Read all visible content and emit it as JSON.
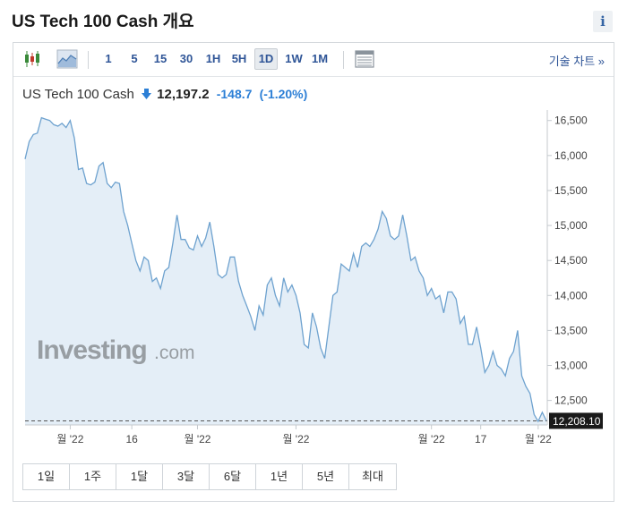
{
  "header": {
    "title": "US Tech 100 Cash 개요",
    "info_label": "i"
  },
  "toolbar": {
    "candlestick_icon": "candlestick-icon",
    "area_icon": "area-chart-icon",
    "table_icon": "table-icon",
    "intervals": [
      "1",
      "5",
      "15",
      "30",
      "1H",
      "5H",
      "1D",
      "1W",
      "1M"
    ],
    "active_interval": "1D",
    "chart_link": "기술 차트 »"
  },
  "quote": {
    "instrument": "US Tech 100 Cash",
    "last": "12,197.2",
    "change": "-148.7",
    "change_pct": "(-1.20%)",
    "direction_icon": "down-arrow-icon"
  },
  "watermark": {
    "brand": "Investing",
    "suffix": ".com"
  },
  "chart_data": {
    "type": "area",
    "title": "",
    "xlabel": "",
    "ylabel": "",
    "ylim": [
      12150,
      16650
    ],
    "yticks": [
      12500,
      13000,
      13500,
      14000,
      14500,
      15000,
      15500,
      16000,
      16500
    ],
    "ytick_labels": [
      "12,500",
      "13,000",
      "13,500",
      "14,000",
      "14,500",
      "15,000",
      "15,500",
      "16,000",
      "16,500"
    ],
    "xticks": [
      {
        "label": "월 '22",
        "index": 11
      },
      {
        "label": "16",
        "index": 26
      },
      {
        "label": "월 '22",
        "index": 42
      },
      {
        "label": "월 '22",
        "index": 66
      },
      {
        "label": "월 '22",
        "index": 99
      },
      {
        "label": "17",
        "index": 111
      },
      {
        "label": "월 '22",
        "index": 125
      }
    ],
    "current_value": 12208.1,
    "current_label": "12,208.10",
    "grid": false,
    "color": "#6ea2cf",
    "fill": "#e4eef7",
    "values": [
      15950,
      16200,
      16300,
      16320,
      16540,
      16520,
      16500,
      16440,
      16420,
      16460,
      16400,
      16500,
      16250,
      15800,
      15820,
      15600,
      15580,
      15620,
      15850,
      15900,
      15600,
      15540,
      15620,
      15600,
      15200,
      15000,
      14750,
      14500,
      14350,
      14550,
      14500,
      14200,
      14250,
      14100,
      14350,
      14400,
      14750,
      15150,
      14800,
      14800,
      14680,
      14650,
      14850,
      14700,
      14820,
      15050,
      14700,
      14300,
      14250,
      14300,
      14550,
      14550,
      14200,
      14000,
      13850,
      13700,
      13500,
      13850,
      13720,
      14150,
      14250,
      14000,
      13850,
      14250,
      14050,
      14150,
      14000,
      13750,
      13300,
      13250,
      13750,
      13550,
      13250,
      13100,
      13550,
      14000,
      14050,
      14450,
      14400,
      14350,
      14600,
      14400,
      14700,
      14750,
      14700,
      14800,
      14950,
      15200,
      15100,
      14850,
      14800,
      14850,
      15150,
      14850,
      14500,
      14550,
      14350,
      14250,
      14000,
      14100,
      13950,
      14000,
      13750,
      14050,
      14050,
      13950,
      13600,
      13700,
      13300,
      13300,
      13550,
      13250,
      12900,
      13000,
      13200,
      13000,
      12950,
      12850,
      13100,
      13200,
      13500,
      12850,
      12700,
      12600,
      12300,
      12200,
      12330,
      12208
    ]
  },
  "ranges": [
    "1일",
    "1주",
    "1달",
    "3달",
    "6달",
    "1년",
    "5년",
    "최대"
  ]
}
